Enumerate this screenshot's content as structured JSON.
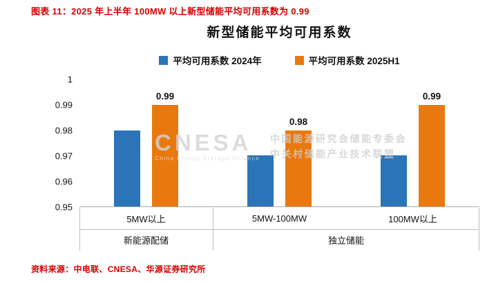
{
  "header": {
    "caption": "图表 11：2025 年上半年 100MW 以上新型储能平均可用系数为 0.99"
  },
  "footer": {
    "source": "资料来源：中电联、CNESA、华源证券研究所"
  },
  "watermark": {
    "logo": "CNESA",
    "logo_sub": "China Energy Storage Alliance",
    "line1": "中国能源研究会储能专委会",
    "line2": "中关村储能产业技术联盟"
  },
  "colors": {
    "accent_red": "#D40000",
    "series_2024_blue": "#2B74B8",
    "series_2025_orange": "#E9790F",
    "axis_line_gray": "#BFBFBF",
    "watermark_gray": "#CFCFCF"
  },
  "chart_data": {
    "type": "bar",
    "title": "新型储能平均可用系数",
    "categories": [
      "5MW以上",
      "5MW-100MW",
      "100MW以上"
    ],
    "groups": [
      {
        "label": "新能源配储",
        "span": 1
      },
      {
        "label": "独立储能",
        "span": 2
      }
    ],
    "series": [
      {
        "name": "平均可用系数 2024年",
        "color": "#2B74B8",
        "values": [
          0.98,
          0.97,
          0.97
        ],
        "show_labels": false,
        "data_labels": []
      },
      {
        "name": "平均可用系数 2025H1",
        "color": "#E9790F",
        "values": [
          0.99,
          0.98,
          0.99
        ],
        "show_labels": true,
        "data_labels": [
          "0.99",
          "0.98",
          "0.99"
        ]
      }
    ],
    "ylim": [
      0.95,
      1.0
    ],
    "yticks": [
      "1",
      "0.99",
      "0.98",
      "0.97",
      "0.96",
      "0.95"
    ],
    "grid": false,
    "legend_position": "top"
  }
}
